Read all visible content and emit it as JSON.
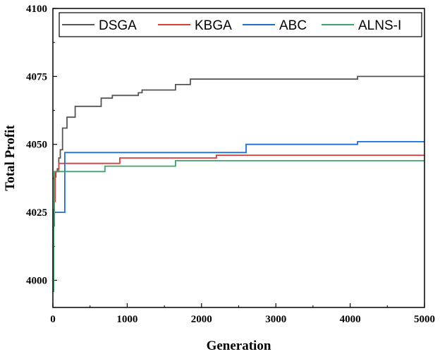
{
  "chart_data": {
    "type": "line",
    "title": "",
    "xlabel": "Generation",
    "ylabel": "Total Profit",
    "xlim": [
      0,
      5000
    ],
    "ylim": [
      3990,
      4100
    ],
    "xticks": [
      0,
      1000,
      2000,
      3000,
      4000,
      5000
    ],
    "yticks": [
      4000,
      4025,
      4050,
      4075,
      4100
    ],
    "legend_position": "top",
    "series": [
      {
        "name": "DSGA",
        "color": "#555555",
        "x": [
          0,
          10,
          20,
          40,
          60,
          80,
          100,
          130,
          190,
          300,
          650,
          800,
          1150,
          1200,
          1650,
          1850,
          4100,
          5000
        ],
        "y": [
          3996,
          4026,
          4038,
          4040,
          4041,
          4045,
          4048,
          4056,
          4060,
          4064,
          4067,
          4068,
          4069,
          4070,
          4072,
          4074,
          4075,
          4075
        ]
      },
      {
        "name": "KBGA",
        "color": "#e03b3b",
        "x": [
          0,
          10,
          20,
          30,
          60,
          80,
          120,
          900,
          2200,
          5000
        ],
        "y": [
          3996,
          4020,
          4029,
          4040,
          4040,
          4043,
          4043,
          4045,
          4046,
          4046
        ]
      },
      {
        "name": "ABC",
        "color": "#1f6fd1",
        "x": [
          0,
          10,
          20,
          40,
          60,
          80,
          160,
          2600,
          4100,
          5000
        ],
        "y": [
          3996,
          4024,
          4025,
          4025,
          4025,
          4025,
          4047,
          4050,
          4051,
          4051
        ]
      },
      {
        "name": "ALNS-I",
        "color": "#3aa66a",
        "x": [
          0,
          10,
          20,
          40,
          80,
          700,
          1650,
          5000
        ],
        "y": [
          3996,
          4022,
          4040,
          4040,
          4040,
          4042,
          4044,
          4044
        ]
      }
    ]
  }
}
